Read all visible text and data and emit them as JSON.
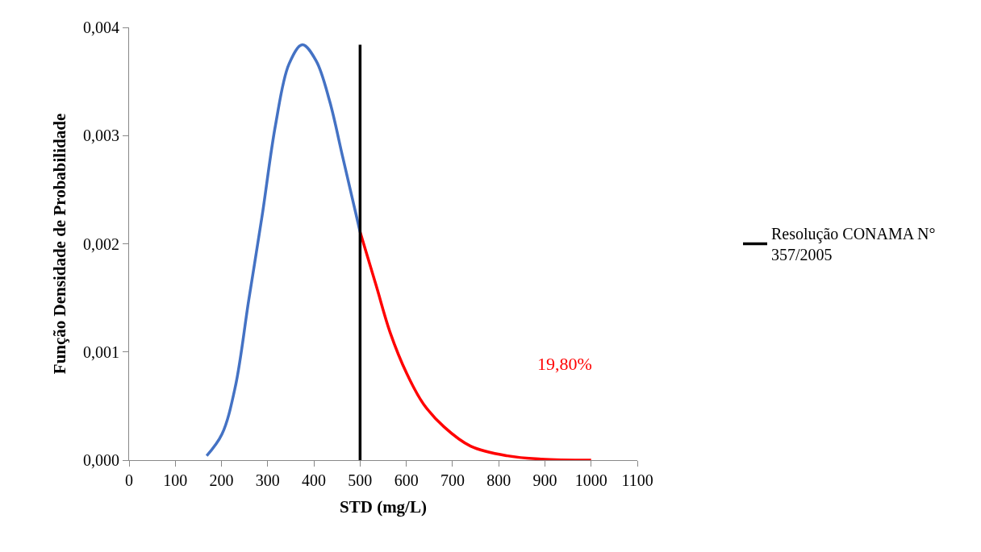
{
  "chart_data": {
    "type": "line",
    "xlabel": "STD (mg/L)",
    "ylabel": "Função Densidade de Probabilidade",
    "series": [
      {
        "color": "#4472c4",
        "x": [
          168,
          201,
          230,
          259,
          288,
          317,
          346,
          375,
          405,
          434,
          463,
          500
        ],
        "values": [
          4e-05,
          0.00024,
          0.00068,
          0.00148,
          0.00226,
          0.0031,
          0.00366,
          0.00384,
          0.00369,
          0.00332,
          0.00279,
          0.00211
        ]
      },
      {
        "color": "#ff0000",
        "x": [
          500,
          535,
          565,
          601,
          637,
          681,
          739,
          819,
          892,
          1000
        ],
        "values": [
          0.00211,
          0.00161,
          0.00118,
          0.0008,
          0.00052,
          0.00031,
          0.00013,
          4e-05,
          1e-05,
          0
        ]
      },
      {
        "name": "Resolução CONAMA N° 357/2005",
        "color": "#000000",
        "x": [
          500,
          500,
          500
        ],
        "values": [
          0,
          0.002,
          0.00384
        ]
      }
    ],
    "annotations": [
      "19,80%"
    ],
    "xlim": [
      0,
      1100
    ],
    "xticks": [
      0,
      100,
      200,
      300,
      400,
      500,
      600,
      700,
      800,
      900,
      1000,
      1100
    ],
    "ylim": [
      0,
      0.004
    ],
    "yticks": [
      {
        "value": 0,
        "label": "0,000"
      },
      {
        "value": 0.001,
        "label": "0,001"
      },
      {
        "value": 0.002,
        "label": "0,002"
      },
      {
        "value": 0.003,
        "label": "0,003"
      },
      {
        "value": 0.004,
        "label": "0,004"
      }
    ],
    "legend": "right",
    "marker": "none",
    "line_style": "solid"
  }
}
